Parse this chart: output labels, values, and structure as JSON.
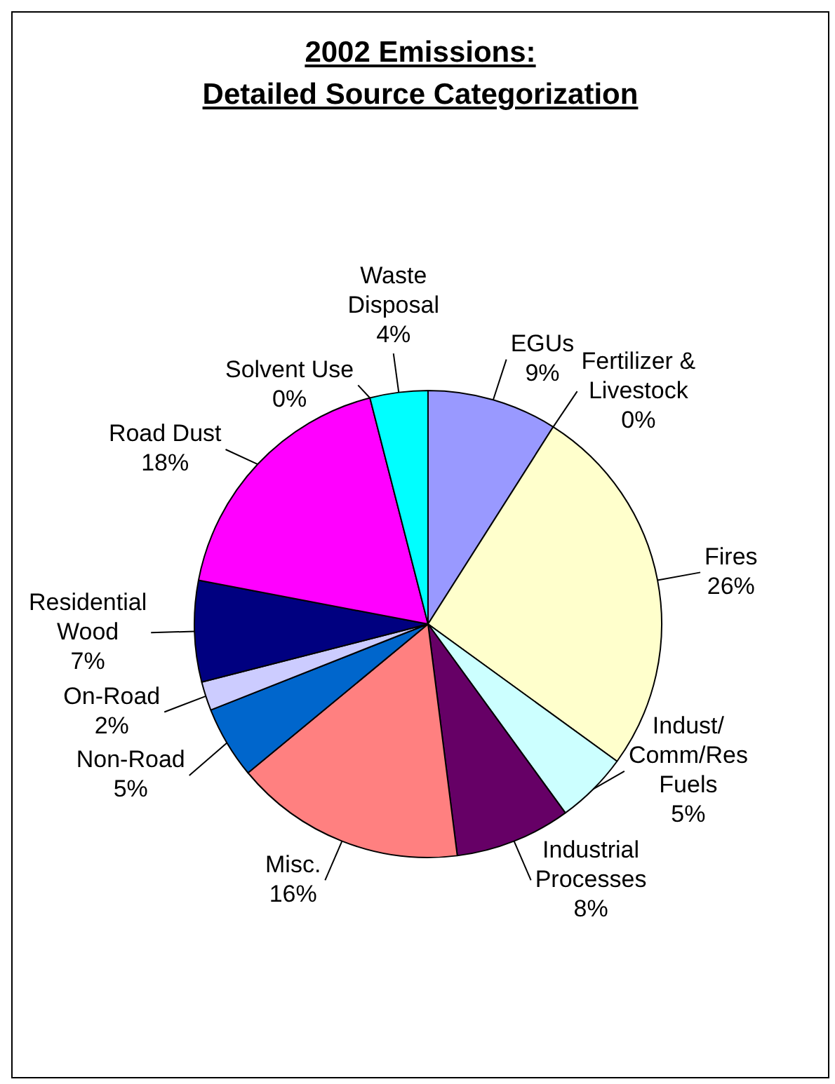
{
  "chart_data": {
    "type": "pie",
    "title": "2002 Emissions:\nDetailed Source Categorization",
    "categories": [
      "EGUs",
      "Fertilizer & Livestock",
      "Fires",
      "Indust/Comm/Res Fuels",
      "Industrial Processes",
      "Misc.",
      "Non-Road",
      "On-Road",
      "Residential Wood",
      "Road Dust",
      "Solvent Use",
      "Waste Disposal"
    ],
    "values": [
      9,
      0,
      26,
      5,
      8,
      16,
      5,
      2,
      7,
      18,
      0,
      4
    ],
    "value_labels": [
      "9%",
      "0%",
      "26%",
      "5%",
      "8%",
      "16%",
      "5%",
      "2%",
      "7%",
      "18%",
      "0%",
      "4%"
    ],
    "colors": [
      "#9999ff",
      "#993366",
      "#ffffcc",
      "#ccffff",
      "#660066",
      "#ff8080",
      "#0066cc",
      "#ccccff",
      "#000080",
      "#ff00ff",
      "#ffff00",
      "#00ffff"
    ]
  }
}
